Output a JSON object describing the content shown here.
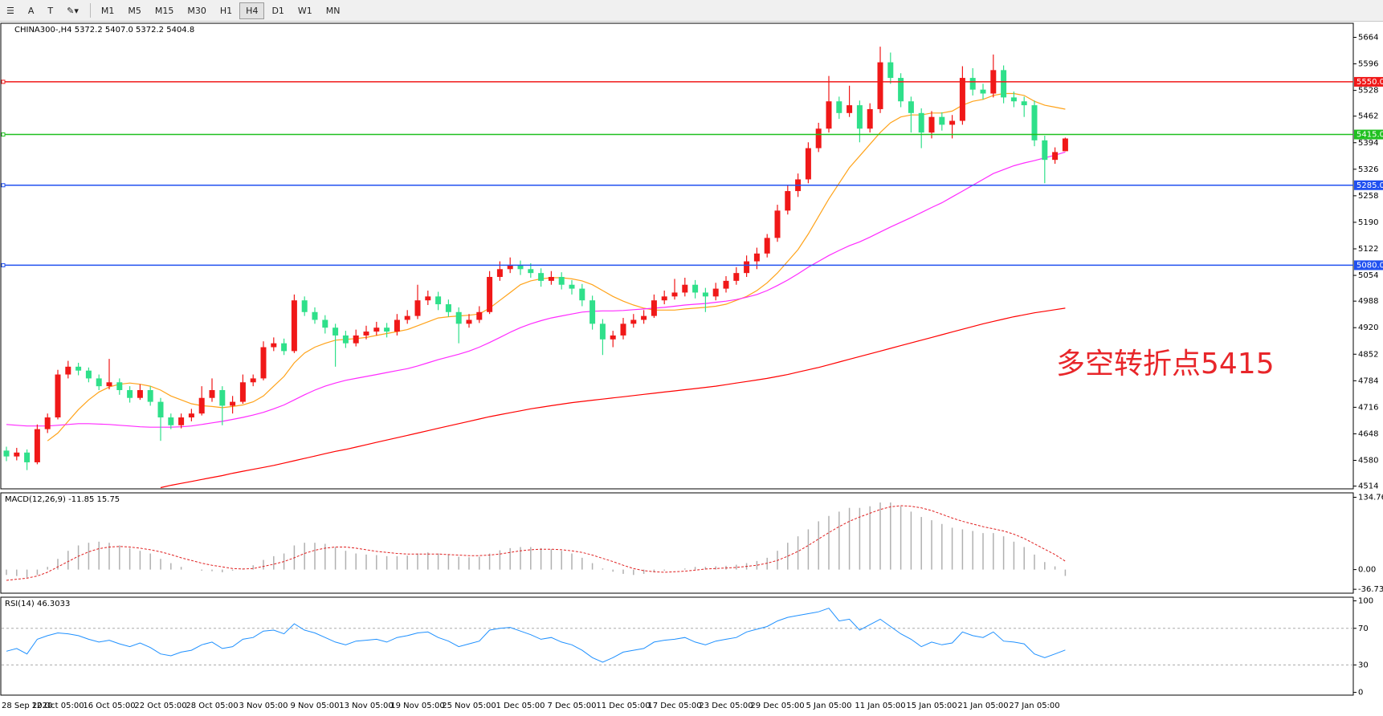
{
  "toolbar": {
    "tools": [
      "A"
    ],
    "timeframes": [
      "M1",
      "M5",
      "M15",
      "M30",
      "H1",
      "H4",
      "D1",
      "W1",
      "MN"
    ],
    "active": "H4"
  },
  "chart_data": {
    "type": "candlestick",
    "title": "CHINA300-,H4  5372.2 5407.0 5372.2 5404.8",
    "annotation": "多空转折点5415",
    "up_color": "#f01818",
    "down_color": "#2fe08a",
    "categories": [
      "28 Sep 2020",
      null,
      null,
      null,
      null,
      "12 Oct 05:00",
      null,
      null,
      null,
      null,
      "16 Oct 05:00",
      null,
      null,
      null,
      null,
      "22 Oct 05:00",
      null,
      null,
      null,
      null,
      "28 Oct 05:00",
      null,
      null,
      null,
      null,
      "3 Nov 05:00",
      null,
      null,
      null,
      null,
      "9 Nov 05:00",
      null,
      null,
      null,
      null,
      "13 Nov 05:00",
      null,
      null,
      null,
      null,
      "19 Nov 05:00",
      null,
      null,
      null,
      null,
      "25 Nov 05:00",
      null,
      null,
      null,
      null,
      "1 Dec 05:00",
      null,
      null,
      null,
      null,
      "7 Dec 05:00",
      null,
      null,
      null,
      null,
      "11 Dec 05:00",
      null,
      null,
      null,
      null,
      "17 Dec 05:00",
      null,
      null,
      null,
      null,
      "23 Dec 05:00",
      null,
      null,
      null,
      null,
      "29 Dec 05:00",
      null,
      null,
      null,
      null,
      "5 Jan 05:00",
      null,
      null,
      null,
      null,
      "11 Jan 05:00",
      null,
      null,
      null,
      null,
      "15 Jan 05:00",
      null,
      null,
      null,
      null,
      "21 Jan 05:00",
      null,
      null,
      null,
      null,
      "27 Jan 05:00",
      null,
      null,
      null
    ],
    "ohlc": [
      [
        4605,
        4615,
        4578,
        4590
      ],
      [
        4590,
        4612,
        4580,
        4600
      ],
      [
        4600,
        4608,
        4555,
        4575
      ],
      [
        4575,
        4672,
        4570,
        4660
      ],
      [
        4660,
        4700,
        4650,
        4690
      ],
      [
        4690,
        4812,
        4685,
        4800
      ],
      [
        4800,
        4835,
        4790,
        4820
      ],
      [
        4820,
        4830,
        4798,
        4810
      ],
      [
        4810,
        4818,
        4780,
        4790
      ],
      [
        4790,
        4800,
        4760,
        4770
      ],
      [
        4770,
        4840,
        4762,
        4780
      ],
      [
        4780,
        4790,
        4748,
        4760
      ],
      [
        4760,
        4770,
        4728,
        4740
      ],
      [
        4740,
        4775,
        4735,
        4760
      ],
      [
        4760,
        4770,
        4720,
        4730
      ],
      [
        4730,
        4740,
        4630,
        4690
      ],
      [
        4690,
        4700,
        4660,
        4670
      ],
      [
        4670,
        4700,
        4662,
        4690
      ],
      [
        4690,
        4712,
        4680,
        4700
      ],
      [
        4700,
        4770,
        4695,
        4740
      ],
      [
        4740,
        4790,
        4730,
        4760
      ],
      [
        4760,
        4770,
        4670,
        4720
      ],
      [
        4720,
        4745,
        4700,
        4730
      ],
      [
        4730,
        4800,
        4725,
        4780
      ],
      [
        4780,
        4800,
        4770,
        4790
      ],
      [
        4790,
        4885,
        4785,
        4870
      ],
      [
        4870,
        4895,
        4860,
        4880
      ],
      [
        4880,
        4892,
        4850,
        4860
      ],
      [
        4860,
        5005,
        4855,
        4990
      ],
      [
        4990,
        5000,
        4950,
        4960
      ],
      [
        4960,
        4972,
        4930,
        4940
      ],
      [
        4940,
        4952,
        4905,
        4920
      ],
      [
        4920,
        4930,
        4820,
        4900
      ],
      [
        4900,
        4912,
        4868,
        4880
      ],
      [
        4880,
        4915,
        4872,
        4900
      ],
      [
        4900,
        4925,
        4890,
        4910
      ],
      [
        4910,
        4935,
        4900,
        4920
      ],
      [
        4920,
        4932,
        4895,
        4910
      ],
      [
        4910,
        4955,
        4900,
        4940
      ],
      [
        4940,
        4965,
        4930,
        4950
      ],
      [
        4950,
        5030,
        4942,
        4990
      ],
      [
        4990,
        5015,
        4978,
        5000
      ],
      [
        5000,
        5012,
        4965,
        4980
      ],
      [
        4980,
        4992,
        4948,
        4960
      ],
      [
        4960,
        4972,
        4880,
        4930
      ],
      [
        4930,
        4955,
        4920,
        4940
      ],
      [
        4940,
        4975,
        4932,
        4960
      ],
      [
        4960,
        5065,
        4955,
        5050
      ],
      [
        5050,
        5090,
        5040,
        5070
      ],
      [
        5070,
        5100,
        5060,
        5080
      ],
      [
        5080,
        5092,
        5055,
        5070
      ],
      [
        5070,
        5085,
        5048,
        5060
      ],
      [
        5060,
        5072,
        5025,
        5040
      ],
      [
        5040,
        5065,
        5030,
        5050
      ],
      [
        5050,
        5062,
        5018,
        5030
      ],
      [
        5030,
        5042,
        5005,
        5020
      ],
      [
        5020,
        5032,
        4975,
        4990
      ],
      [
        4990,
        5002,
        4915,
        4930
      ],
      [
        4930,
        4942,
        4850,
        4890
      ],
      [
        4890,
        4912,
        4870,
        4900
      ],
      [
        4900,
        4945,
        4890,
        4930
      ],
      [
        4930,
        4955,
        4920,
        4940
      ],
      [
        4940,
        4965,
        4930,
        4950
      ],
      [
        4950,
        5005,
        4945,
        4990
      ],
      [
        4990,
        5015,
        4980,
        5000
      ],
      [
        5000,
        5045,
        4992,
        5010
      ],
      [
        5010,
        5048,
        5000,
        5030
      ],
      [
        5030,
        5042,
        4995,
        5010
      ],
      [
        5010,
        5022,
        4960,
        5000
      ],
      [
        5000,
        5035,
        4990,
        5020
      ],
      [
        5020,
        5052,
        5010,
        5040
      ],
      [
        5040,
        5075,
        5030,
        5060
      ],
      [
        5060,
        5105,
        5050,
        5090
      ],
      [
        5090,
        5125,
        5070,
        5110
      ],
      [
        5110,
        5160,
        5100,
        5150
      ],
      [
        5150,
        5235,
        5140,
        5220
      ],
      [
        5220,
        5285,
        5210,
        5270
      ],
      [
        5270,
        5315,
        5255,
        5300
      ],
      [
        5300,
        5395,
        5290,
        5380
      ],
      [
        5380,
        5445,
        5370,
        5430
      ],
      [
        5430,
        5565,
        5420,
        5500
      ],
      [
        5500,
        5512,
        5455,
        5470
      ],
      [
        5470,
        5540,
        5460,
        5490
      ],
      [
        5490,
        5502,
        5395,
        5430
      ],
      [
        5430,
        5495,
        5420,
        5480
      ],
      [
        5480,
        5640,
        5470,
        5600
      ],
      [
        5600,
        5625,
        5545,
        5560
      ],
      [
        5560,
        5572,
        5485,
        5500
      ],
      [
        5500,
        5512,
        5420,
        5470
      ],
      [
        5470,
        5482,
        5380,
        5420
      ],
      [
        5420,
        5475,
        5405,
        5460
      ],
      [
        5460,
        5472,
        5425,
        5440
      ],
      [
        5440,
        5465,
        5405,
        5450
      ],
      [
        5450,
        5590,
        5440,
        5560
      ],
      [
        5560,
        5585,
        5515,
        5530
      ],
      [
        5530,
        5545,
        5505,
        5520
      ],
      [
        5520,
        5620,
        5510,
        5580
      ],
      [
        5580,
        5592,
        5495,
        5510
      ],
      [
        5510,
        5525,
        5485,
        5500
      ],
      [
        5500,
        5512,
        5460,
        5490
      ],
      [
        5490,
        5502,
        5385,
        5400
      ],
      [
        5400,
        5412,
        5290,
        5350
      ],
      [
        5350,
        5382,
        5340,
        5370
      ],
      [
        5372.2,
        5407,
        5372.2,
        5404.8
      ]
    ],
    "overlays": [
      {
        "color": "#ffa31a",
        "values": [
          null,
          null,
          null,
          null,
          4630,
          4650,
          4680,
          4710,
          4735,
          4755,
          4768,
          4775,
          4778,
          4775,
          4770,
          4760,
          4745,
          4735,
          4725,
          4720,
          4718,
          4715,
          4718,
          4722,
          4730,
          4745,
          4770,
          4795,
          4830,
          4855,
          4870,
          4880,
          4888,
          4890,
          4892,
          4895,
          4900,
          4905,
          4910,
          4915,
          4925,
          4935,
          4945,
          4948,
          4950,
          4952,
          4955,
          4970,
          4990,
          5010,
          5030,
          5040,
          5045,
          5048,
          5048,
          5045,
          5040,
          5030,
          5015,
          5000,
          4988,
          4978,
          4970,
          4965,
          4965,
          4965,
          4968,
          4970,
          4972,
          4975,
          4980,
          4990,
          5000,
          5015,
          5035,
          5060,
          5090,
          5120,
          5160,
          5205,
          5250,
          5290,
          5330,
          5360,
          5390,
          5420,
          5445,
          5460,
          5465,
          5465,
          5470,
          5470,
          5475,
          5490,
          5500,
          5505,
          5515,
          5520,
          5520,
          5515,
          5500,
          5490,
          5485,
          5480
        ]
      },
      {
        "color": "#ff2bff",
        "values": [
          4672,
          4670,
          4668,
          4668,
          4668,
          4670,
          4672,
          4674,
          4674,
          4673,
          4672,
          4670,
          4668,
          4666,
          4665,
          4665,
          4665,
          4666,
          4668,
          4672,
          4676,
          4680,
          4685,
          4690,
          4696,
          4703,
          4712,
          4722,
          4735,
          4748,
          4760,
          4770,
          4778,
          4785,
          4790,
          4795,
          4800,
          4805,
          4810,
          4815,
          4822,
          4830,
          4838,
          4845,
          4852,
          4860,
          4870,
          4882,
          4895,
          4908,
          4920,
          4930,
          4938,
          4945,
          4950,
          4955,
          4960,
          4962,
          4963,
          4963,
          4964,
          4966,
          4968,
          4970,
          4972,
          4975,
          4978,
          4980,
          4982,
          4985,
          4988,
          4992,
          4998,
          5005,
          5015,
          5028,
          5042,
          5058,
          5075,
          5090,
          5105,
          5118,
          5130,
          5140,
          5152,
          5165,
          5178,
          5190,
          5202,
          5215,
          5228,
          5240,
          5255,
          5270,
          5285,
          5300,
          5315,
          5325,
          5335,
          5342,
          5348,
          5355,
          5362,
          5370
        ]
      },
      {
        "color": "#ff0000",
        "values": [
          null,
          null,
          null,
          null,
          null,
          null,
          null,
          null,
          null,
          null,
          null,
          null,
          null,
          null,
          null,
          4510,
          4516,
          4521,
          4526,
          4531,
          4536,
          4541,
          4547,
          4552,
          4557,
          4562,
          4567,
          4573,
          4579,
          4585,
          4591,
          4597,
          4603,
          4608,
          4614,
          4620,
          4626,
          4632,
          4638,
          4644,
          4650,
          4656,
          4662,
          4668,
          4674,
          4680,
          4686,
          4692,
          4697,
          4702,
          4707,
          4712,
          4716,
          4720,
          4724,
          4728,
          4731,
          4734,
          4737,
          4740,
          4743,
          4746,
          4749,
          4752,
          4755,
          4758,
          4761,
          4764,
          4767,
          4770,
          4774,
          4778,
          4782,
          4786,
          4790,
          4795,
          4800,
          4806,
          4812,
          4818,
          4825,
          4832,
          4839,
          4846,
          4853,
          4860,
          4867,
          4874,
          4881,
          4888,
          4895,
          4902,
          4909,
          4916,
          4923,
          4930,
          4936,
          4942,
          4948,
          4953,
          4958,
          4962,
          4966,
          4970
        ]
      }
    ],
    "levels": [
      {
        "value": 5550,
        "label": "5550.0",
        "color": "#f01818"
      },
      {
        "value": 5415,
        "label": "5415.0",
        "color": "#20c020"
      },
      {
        "value": 5285,
        "label": "5285.0",
        "color": "#2050f0"
      },
      {
        "value": 5080,
        "label": "5080.0",
        "color": "#2050f0"
      }
    ],
    "ylim": [
      4507,
      5700
    ],
    "yticks": [
      4514,
      4580,
      4648,
      4716,
      4784,
      4852,
      4920,
      4988,
      5054,
      5122,
      5190,
      5258,
      5326,
      5394,
      5462,
      5528,
      5596,
      5664
    ],
    "macd": {
      "title": "MACD(12,26,9) -11.85 15.75",
      "color": "#b0b0b0",
      "signal_color": "#e02020",
      "ylim": [
        -44,
        143
      ],
      "yticks": [
        134.76,
        {
          "value": 0,
          "label": "0.00"
        },
        -36.73
      ],
      "histogram": [
        -10,
        -12,
        -15,
        -10,
        5,
        20,
        35,
        45,
        50,
        52,
        50,
        45,
        40,
        35,
        30,
        20,
        12,
        5,
        0,
        -2,
        -3,
        -5,
        -2,
        2,
        8,
        18,
        25,
        30,
        45,
        50,
        50,
        48,
        42,
        35,
        30,
        28,
        27,
        25,
        25,
        26,
        30,
        32,
        30,
        28,
        24,
        23,
        24,
        30,
        36,
        40,
        42,
        42,
        40,
        38,
        35,
        30,
        22,
        12,
        2,
        -4,
        -8,
        -10,
        -8,
        -5,
        -2,
        0,
        2,
        5,
        5,
        6,
        7,
        9,
        12,
        16,
        22,
        35,
        50,
        62,
        75,
        90,
        100,
        108,
        115,
        115,
        118,
        125,
        125,
        118,
        108,
        98,
        92,
        85,
        78,
        75,
        72,
        68,
        68,
        62,
        52,
        42,
        28,
        14,
        6,
        -11.85
      ],
      "signal": [
        -20,
        -18,
        -16,
        -12,
        -5,
        5,
        15,
        25,
        33,
        39,
        42,
        43,
        42,
        40,
        37,
        33,
        28,
        22,
        17,
        12,
        8,
        5,
        2,
        1,
        2,
        6,
        10,
        15,
        22,
        30,
        36,
        40,
        42,
        42,
        40,
        37,
        34,
        32,
        30,
        29,
        29,
        29,
        29,
        28,
        27,
        26,
        26,
        27,
        29,
        32,
        35,
        37,
        38,
        38,
        37,
        35,
        32,
        27,
        21,
        15,
        8,
        2,
        -2,
        -4,
        -5,
        -4,
        -3,
        -1,
        1,
        2,
        3,
        4,
        6,
        8,
        12,
        17,
        25,
        34,
        45,
        57,
        69,
        80,
        90,
        98,
        105,
        112,
        117,
        119,
        118,
        115,
        110,
        103,
        96,
        90,
        85,
        80,
        76,
        72,
        66,
        58,
        48,
        38,
        28,
        15.75
      ]
    },
    "rsi": {
      "title": "RSI(14) 46.3033",
      "color": "#1e90ff",
      "ylim": [
        -3,
        104
      ],
      "yticks": [
        100,
        70,
        30,
        0
      ],
      "levels": [
        70,
        30
      ],
      "values": [
        45,
        48,
        42,
        58,
        62,
        65,
        64,
        62,
        58,
        55,
        57,
        53,
        50,
        54,
        49,
        42,
        40,
        44,
        46,
        52,
        55,
        48,
        50,
        58,
        60,
        67,
        68,
        64,
        75,
        68,
        65,
        60,
        55,
        52,
        56,
        57,
        58,
        55,
        60,
        62,
        65,
        66,
        60,
        56,
        50,
        53,
        56,
        68,
        70,
        71,
        67,
        63,
        58,
        60,
        55,
        52,
        46,
        38,
        33,
        38,
        44,
        46,
        48,
        55,
        57,
        58,
        60,
        55,
        52,
        56,
        58,
        60,
        66,
        69,
        72,
        78,
        82,
        84,
        86,
        88,
        92,
        78,
        80,
        68,
        74,
        80,
        72,
        64,
        58,
        50,
        55,
        52,
        54,
        66,
        62,
        60,
        66,
        56,
        55,
        53,
        42,
        38,
        42,
        46.3033
      ]
    }
  }
}
